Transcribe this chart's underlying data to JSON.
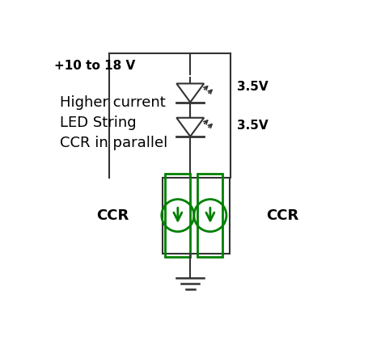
{
  "background_color": "#ffffff",
  "text_color": "#000000",
  "green_color": "#008000",
  "dark_color": "#333333",
  "title": "+10 to 18 V",
  "label_higher": "Higher current",
  "label_led": "LED String",
  "label_ccr_par": "CCR in parallel",
  "label_ccr_left": "CCR",
  "label_ccr_right": "CCR",
  "label_v1": "3.5V",
  "label_v2": "3.5V",
  "fig_width": 4.56,
  "fig_height": 4.32,
  "dpi": 100
}
